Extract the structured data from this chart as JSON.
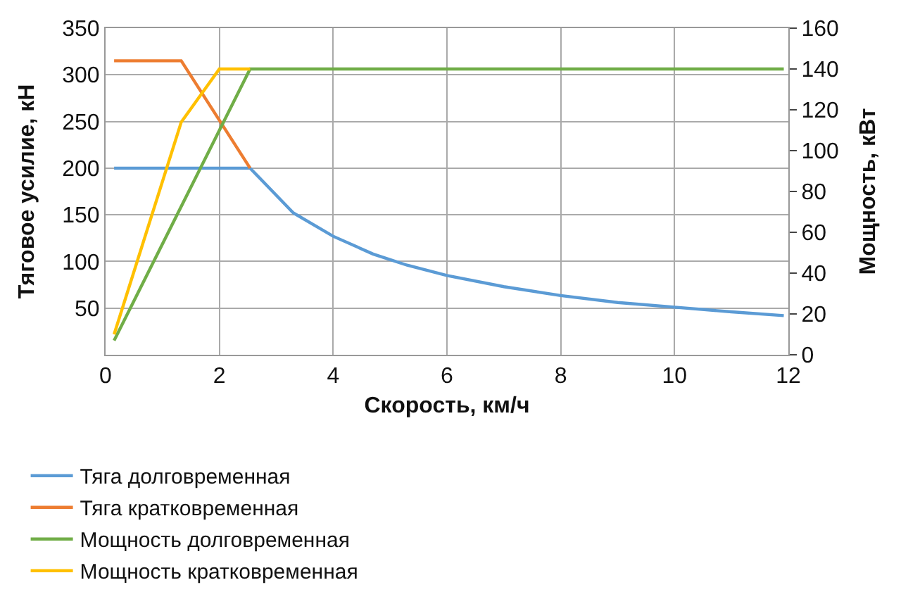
{
  "chart_data": {
    "type": "line",
    "xlabel": "Скорость, км/ч",
    "ylabel": "Тяговое усилие, кН",
    "y2label": "Мощность, кВт",
    "xlim": [
      0,
      12
    ],
    "xticks": [
      0,
      2,
      4,
      6,
      8,
      10,
      12
    ],
    "ylim": [
      0,
      350
    ],
    "yticks": [
      50,
      100,
      150,
      200,
      250,
      300,
      350
    ],
    "y2lim": [
      0,
      160
    ],
    "y2ticks": [
      0,
      20,
      40,
      60,
      80,
      100,
      120,
      140,
      160
    ],
    "grid": true,
    "legend": "bottom",
    "marker": "none",
    "line_style": "solid",
    "series": [
      {
        "name": "Тяга долговременная",
        "color": "#5b9bd5",
        "x": [
          0.15,
          2.54,
          3.3,
          4,
          4.7,
          5.3,
          6,
          7,
          8,
          9,
          10,
          11,
          11.92
        ],
        "values": [
          200,
          200,
          152,
          127,
          108,
          96,
          85,
          73,
          63.5,
          56,
          51,
          46,
          42
        ]
      },
      {
        "name": "Тяга кратковременная",
        "color": "#ed7d31",
        "x": [
          0.15,
          1.33,
          2.54
        ],
        "values": [
          315,
          315,
          200
        ]
      },
      {
        "name": "Мощность долговременная",
        "color": "#70ad47",
        "axis": "y2",
        "x": [
          0.15,
          2.54,
          11.92
        ],
        "values": [
          7,
          140,
          140
        ]
      },
      {
        "name": "Мощность кратковременная",
        "color": "#ffc000",
        "axis": "y2",
        "x": [
          0.15,
          1.33,
          2.0,
          2.54
        ],
        "values": [
          10,
          114,
          140,
          140
        ]
      }
    ]
  }
}
